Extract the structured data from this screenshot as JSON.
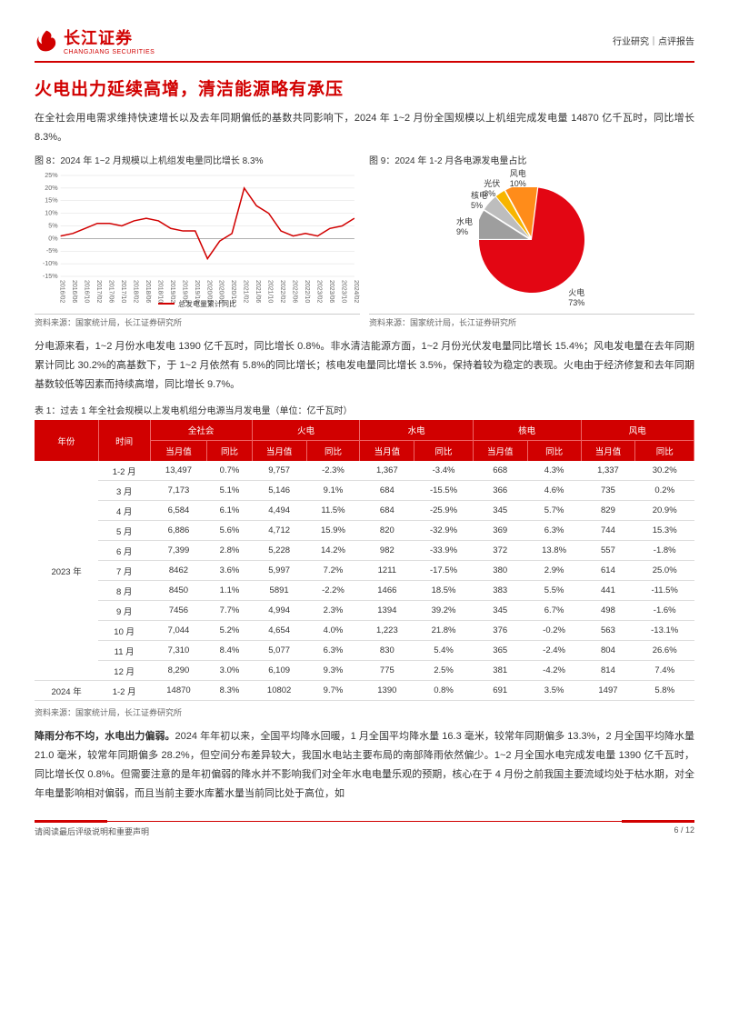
{
  "header": {
    "logo_cn": "长江证券",
    "logo_en": "CHANGJIANG SECURITIES",
    "right": "行业研究｜点评报告"
  },
  "title": "火电出力延续高增，清洁能源略有承压",
  "intro": "在全社会用电需求维持快速增长以及去年同期偏低的基数共同影响下，2024 年 1~2 月份全国规模以上机组完成发电量 14870 亿千瓦时，同比增长 8.3%。",
  "fig8": {
    "title": "图 8：2024 年 1~2 月规模以上机组发电量同比增长 8.3%",
    "type": "line",
    "series_name": "总发电量累计同比",
    "line_color": "#d10000",
    "grid_color": "#dcdcdc",
    "ylim": [
      -15,
      25
    ],
    "ytick_step": 5,
    "yticks_labels": [
      "-15%",
      "-10%",
      "-5%",
      "0%",
      "5%",
      "10%",
      "15%",
      "20%",
      "25%"
    ],
    "x_labels": [
      "2016/02",
      "2016/06",
      "2016/10",
      "2017/02",
      "2017/06",
      "2017/10",
      "2018/02",
      "2018/06",
      "2018/10",
      "2019/02",
      "2019/06",
      "2019/10",
      "2020/02",
      "2020/06",
      "2020/10",
      "2021/02",
      "2021/06",
      "2021/10",
      "2022/02",
      "2022/06",
      "2022/10",
      "2023/02",
      "2023/06",
      "2023/10",
      "2024/02"
    ],
    "values": [
      1,
      2,
      4,
      6,
      6,
      5,
      7,
      8,
      7,
      4,
      3,
      3,
      -8,
      -1,
      2,
      20,
      13,
      10,
      3,
      1,
      2,
      1,
      4,
      5,
      8
    ],
    "source": "资料来源：国家统计局，长江证券研究所"
  },
  "fig9": {
    "title": "图 9：2024 年 1-2 月各电源发电量占比",
    "type": "pie",
    "slices": [
      {
        "label": "火电",
        "value": 73,
        "color": "#e30613"
      },
      {
        "label": "水电",
        "value": 9,
        "color": "#9e9e9e"
      },
      {
        "label": "核电",
        "value": 5,
        "color": "#bdbdbd"
      },
      {
        "label": "光伏",
        "value": 3,
        "color": "#f7b500"
      },
      {
        "label": "风电",
        "value": 10,
        "color": "#ff8c1a"
      }
    ],
    "label_fontsize": 9,
    "source": "资料来源：国家统计局，长江证券研究所"
  },
  "mid_para": "分电源来看，1~2 月份水电发电 1390 亿千瓦时，同比增长 0.8%。非水清洁能源方面，1~2 月份光伏发电量同比增长 15.4%；风电发电量在去年同期累计同比 30.2%的高基数下，于 1~2 月依然有 5.8%的同比增长；核电发电量同比增长 3.5%，保持着较为稳定的表现。火电由于经济修复和去年同期基数较低等因素而持续高增，同比增长 9.7%。",
  "table": {
    "title": "表 1：过去 1 年全社会规模以上发电机组分电源当月发电量（单位：亿千瓦时）",
    "header_top": [
      "年份",
      "时间",
      "全社会",
      "火电",
      "水电",
      "核电",
      "风电"
    ],
    "header_sub": [
      "当月值",
      "同比",
      "当月值",
      "同比",
      "当月值",
      "同比",
      "当月值",
      "同比",
      "当月值",
      "同比"
    ],
    "year1": "2023 年",
    "year2": "2024 年",
    "rows": [
      [
        "1-2 月",
        "13,497",
        "0.7%",
        "9,757",
        "-2.3%",
        "1,367",
        "-3.4%",
        "668",
        "4.3%",
        "1,337",
        "30.2%"
      ],
      [
        "3 月",
        "7,173",
        "5.1%",
        "5,146",
        "9.1%",
        "684",
        "-15.5%",
        "366",
        "4.6%",
        "735",
        "0.2%"
      ],
      [
        "4 月",
        "6,584",
        "6.1%",
        "4,494",
        "11.5%",
        "684",
        "-25.9%",
        "345",
        "5.7%",
        "829",
        "20.9%"
      ],
      [
        "5 月",
        "6,886",
        "5.6%",
        "4,712",
        "15.9%",
        "820",
        "-32.9%",
        "369",
        "6.3%",
        "744",
        "15.3%"
      ],
      [
        "6 月",
        "7,399",
        "2.8%",
        "5,228",
        "14.2%",
        "982",
        "-33.9%",
        "372",
        "13.8%",
        "557",
        "-1.8%"
      ],
      [
        "7 月",
        "8462",
        "3.6%",
        "5,997",
        "7.2%",
        "1211",
        "-17.5%",
        "380",
        "2.9%",
        "614",
        "25.0%"
      ],
      [
        "8 月",
        "8450",
        "1.1%",
        "5891",
        "-2.2%",
        "1466",
        "18.5%",
        "383",
        "5.5%",
        "441",
        "-11.5%"
      ],
      [
        "9 月",
        "7456",
        "7.7%",
        "4,994",
        "2.3%",
        "1394",
        "39.2%",
        "345",
        "6.7%",
        "498",
        "-1.6%"
      ],
      [
        "10 月",
        "7,044",
        "5.2%",
        "4,654",
        "4.0%",
        "1,223",
        "21.8%",
        "376",
        "-0.2%",
        "563",
        "-13.1%"
      ],
      [
        "11 月",
        "7,310",
        "8.4%",
        "5,077",
        "6.3%",
        "830",
        "5.4%",
        "365",
        "-2.4%",
        "804",
        "26.6%"
      ],
      [
        "12 月",
        "8,290",
        "3.0%",
        "6,109",
        "9.3%",
        "775",
        "2.5%",
        "381",
        "-4.2%",
        "814",
        "7.4%"
      ]
    ],
    "row2024": [
      "1-2 月",
      "14870",
      "8.3%",
      "10802",
      "9.7%",
      "1390",
      "0.8%",
      "691",
      "3.5%",
      "1497",
      "5.8%"
    ],
    "source": "资料来源：国家统计局，长江证券研究所"
  },
  "last_para_bold": "降雨分布不均，水电出力偏弱。",
  "last_para": "2024 年年初以来，全国平均降水回暖，1 月全国平均降水量 16.3 毫米，较常年同期偏多 13.3%，2 月全国平均降水量 21.0 毫米，较常年同期偏多 28.2%，但空间分布差异较大，我国水电站主要布局的南部降雨依然偏少。1~2 月全国水电完成发电量 1390 亿千瓦时，同比增长仅 0.8%。但需要注意的是年初偏弱的降水并不影响我们对全年水电电量乐观的预期，核心在于 4 月份之前我国主要流域均处于枯水期，对全年电量影响相对偏弱，而且当前主要水库蓄水量当前同比处于高位，如",
  "footer": {
    "left": "请阅读最后评级说明和重要声明",
    "right": "6 / 12"
  },
  "colors": {
    "brand": "#d10000",
    "text": "#333333"
  }
}
